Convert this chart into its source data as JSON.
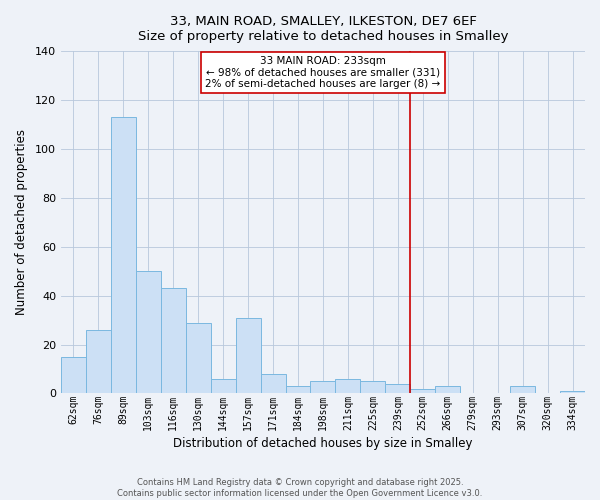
{
  "title": "33, MAIN ROAD, SMALLEY, ILKESTON, DE7 6EF",
  "subtitle": "Size of property relative to detached houses in Smalley",
  "xlabel": "Distribution of detached houses by size in Smalley",
  "ylabel": "Number of detached properties",
  "bar_labels": [
    "62sqm",
    "76sqm",
    "89sqm",
    "103sqm",
    "116sqm",
    "130sqm",
    "144sqm",
    "157sqm",
    "171sqm",
    "184sqm",
    "198sqm",
    "211sqm",
    "225sqm",
    "239sqm",
    "252sqm",
    "266sqm",
    "279sqm",
    "293sqm",
    "307sqm",
    "320sqm",
    "334sqm"
  ],
  "bar_values": [
    15,
    26,
    113,
    50,
    43,
    29,
    6,
    31,
    8,
    3,
    5,
    6,
    5,
    4,
    2,
    3,
    0,
    0,
    3,
    0,
    1
  ],
  "bar_color": "#cce0f5",
  "bar_edge_color": "#7ab8e0",
  "vline_x_index": 13,
  "vline_color": "#cc0000",
  "annotation_title": "33 MAIN ROAD: 233sqm",
  "annotation_line1": "← 98% of detached houses are smaller (331)",
  "annotation_line2": "2% of semi-detached houses are larger (8) →",
  "annotation_box_color": "#ffffff",
  "annotation_box_edge": "#cc0000",
  "ylim": [
    0,
    140
  ],
  "yticks": [
    0,
    20,
    40,
    60,
    80,
    100,
    120,
    140
  ],
  "footer1": "Contains HM Land Registry data © Crown copyright and database right 2025.",
  "footer2": "Contains public sector information licensed under the Open Government Licence v3.0.",
  "background_color": "#eef2f8"
}
